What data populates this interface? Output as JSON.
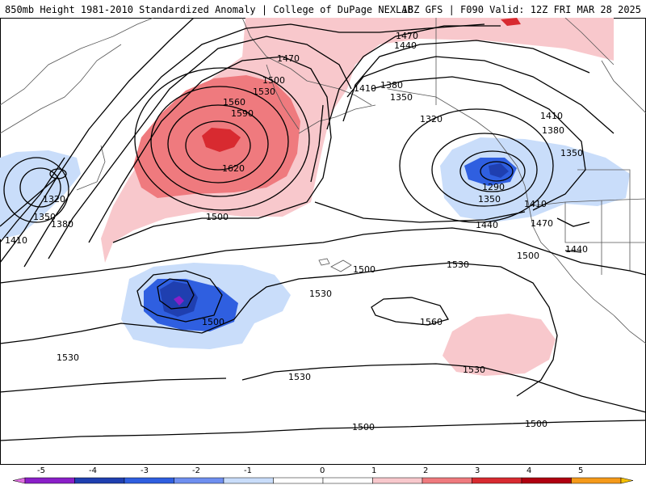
{
  "header": {
    "left": "850mb Height 1981-2010 Standardized Anomaly | College of DuPage NEXLAB",
    "right": "18Z GFS | F090 Valid: 12Z FRI MAR 28 2025"
  },
  "contour_labels": [
    "1470",
    "1440",
    "1470",
    "1500",
    "1530",
    "1560",
    "1590",
    "1620",
    "1410",
    "1380",
    "1350",
    "1320",
    "1290",
    "1350",
    "1410",
    "1440",
    "1380",
    "1410",
    "1350",
    "1470",
    "1440",
    "1500",
    "1320",
    "1350",
    "1380",
    "1410",
    "1500",
    "1500",
    "1530",
    "1530",
    "1560",
    "1500",
    "1530",
    "1530",
    "1530",
    "1500",
    "1500"
  ],
  "colorbar": {
    "ticks": [
      "-5",
      "-4",
      "-3",
      "-2",
      "-1",
      "0",
      "1",
      "2",
      "3",
      "4",
      "5"
    ],
    "colors": [
      "#e070e0",
      "#8a1fc8",
      "#1f3fb0",
      "#2f5fe0",
      "#6f8ff0",
      "#c9ddfa",
      "#ffffff",
      "#ffffff",
      "#f8c8cc",
      "#ef7a7e",
      "#d82a30",
      "#b00010",
      "#f59a1a",
      "#f5c000"
    ]
  }
}
